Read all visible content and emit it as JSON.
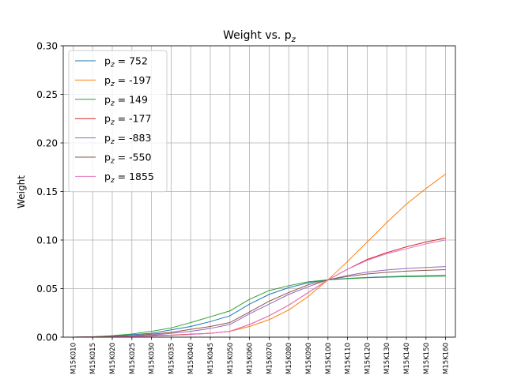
{
  "chart_data": {
    "type": "line",
    "title_main": "Weight vs. p",
    "title_sub": "z",
    "xlabel": "",
    "ylabel": "Weight",
    "ylim": [
      0,
      0.3
    ],
    "yticks": [
      "0.00",
      "0.05",
      "0.10",
      "0.15",
      "0.20",
      "0.25",
      "0.30"
    ],
    "grid": true,
    "legend_position": "top-left",
    "categories": [
      "M15K010",
      "M15K015",
      "M15K020",
      "M15K025",
      "M15K030",
      "M15K035",
      "M15K040",
      "M15K045",
      "M15K050",
      "M15K060",
      "M15K070",
      "M15K080",
      "M15K090",
      "M15K100",
      "M15K110",
      "M15K120",
      "M15K130",
      "M15K140",
      "M15K150",
      "M15K160"
    ],
    "series": [
      {
        "name": "p_z = 752",
        "label_prefix": "p",
        "label_sub": "z",
        "label_value": " = 752",
        "color": "#1f77b4",
        "values": [
          0.0,
          0.0003,
          0.0012,
          0.0025,
          0.004,
          0.0075,
          0.011,
          0.016,
          0.022,
          0.034,
          0.044,
          0.051,
          0.056,
          0.059,
          0.0605,
          0.0615,
          0.0622,
          0.0628,
          0.0632,
          0.0635
        ]
      },
      {
        "name": "p_z = -197",
        "label_prefix": "p",
        "label_sub": "z",
        "label_value": " = -197",
        "color": "#ff7f0e",
        "values": [
          0.0,
          0.0001,
          0.0003,
          0.0007,
          0.0012,
          0.002,
          0.003,
          0.004,
          0.006,
          0.011,
          0.018,
          0.028,
          0.042,
          0.059,
          0.078,
          0.098,
          0.118,
          0.137,
          0.153,
          0.168
        ]
      },
      {
        "name": "p_z = 149",
        "label_prefix": "p",
        "label_sub": "z",
        "label_value": " = 149",
        "color": "#2ca02c",
        "values": [
          0.0,
          0.0004,
          0.0015,
          0.0033,
          0.006,
          0.0095,
          0.015,
          0.021,
          0.027,
          0.039,
          0.048,
          0.053,
          0.057,
          0.059,
          0.0602,
          0.0612,
          0.0618,
          0.0623,
          0.0626,
          0.0629
        ]
      },
      {
        "name": "p_z = -177",
        "label_prefix": "p",
        "label_sub": "z",
        "label_value": " = -177",
        "color": "#d62728",
        "values": [
          0.0,
          0.0002,
          0.0006,
          0.001,
          0.0015,
          0.002,
          0.003,
          0.004,
          0.006,
          0.013,
          0.022,
          0.033,
          0.046,
          0.059,
          0.07,
          0.08,
          0.087,
          0.093,
          0.098,
          0.102
        ]
      },
      {
        "name": "p_z = -883",
        "label_prefix": "p",
        "label_sub": "z",
        "label_value": " = -883",
        "color": "#9467bd",
        "values": [
          0.0,
          0.0001,
          0.0005,
          0.001,
          0.002,
          0.004,
          0.006,
          0.009,
          0.013,
          0.024,
          0.034,
          0.044,
          0.052,
          0.059,
          0.0635,
          0.067,
          0.0692,
          0.0707,
          0.0718,
          0.0727
        ]
      },
      {
        "name": "p_z = -550",
        "label_prefix": "p",
        "label_sub": "z",
        "label_value": " = -550",
        "color": "#8c564b",
        "values": [
          0.0,
          0.0002,
          0.0007,
          0.0015,
          0.003,
          0.005,
          0.008,
          0.011,
          0.015,
          0.026,
          0.037,
          0.046,
          0.054,
          0.059,
          0.0625,
          0.065,
          0.0668,
          0.068,
          0.0688,
          0.0695
        ]
      },
      {
        "name": "p_z = 1855",
        "label_prefix": "p",
        "label_sub": "z",
        "label_value": " = 1855",
        "color": "#e377c2",
        "values": [
          0.0,
          0.0001,
          0.0003,
          0.0006,
          0.001,
          0.0017,
          0.0027,
          0.004,
          0.006,
          0.013,
          0.022,
          0.033,
          0.046,
          0.059,
          0.07,
          0.079,
          0.086,
          0.091,
          0.096,
          0.1
        ]
      }
    ]
  }
}
